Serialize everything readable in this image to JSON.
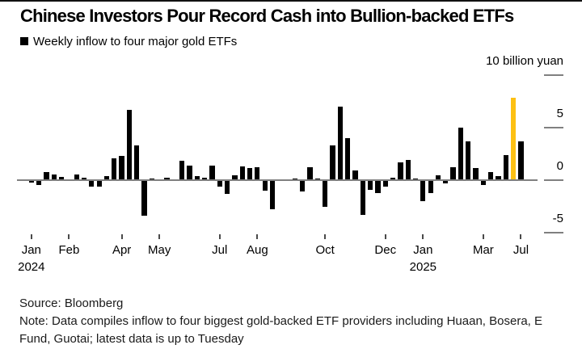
{
  "title": "Chinese Investors Pour Record Cash into Bullion-backed ETFs",
  "legend": {
    "label": "Weekly inflow to four major gold ETFs",
    "swatch_color": "#000000"
  },
  "footer": {
    "source": "Source: Bloomberg",
    "note": "Note: Data compiles inflow to four biggest gold-backed ETF providers including Huaan, Bosera, E Fund, Guotai; latest data is up to Tuesday"
  },
  "colors": {
    "bar": "#000000",
    "highlight": "#FDC013",
    "axis": "#808080",
    "tick": "#4a4a4a"
  },
  "chart_data": {
    "type": "bar",
    "title": "Chinese Investors Pour Record Cash into Bullion-backed ETFs",
    "subtitle": "Weekly inflow to four major gold ETFs",
    "unit": "10 billion yuan",
    "ylim": [
      -6.5,
      10
    ],
    "grid": false,
    "legend_position": "top-left",
    "values": [
      -0.25,
      -0.45,
      0.75,
      0.55,
      0.3,
      0.05,
      0.5,
      0.25,
      -0.6,
      -0.6,
      0.35,
      2.1,
      2.3,
      6.7,
      3.3,
      -3.4,
      0.15,
      0.1,
      0.2,
      0.08,
      1.85,
      1.35,
      0.35,
      0.2,
      1.4,
      -0.6,
      -1.3,
      0.45,
      1.3,
      1.15,
      1.2,
      -1.0,
      -2.75,
      0.05,
      0.05,
      0.15,
      -1.05,
      1.2,
      0.13,
      -2.5,
      3.3,
      7.0,
      4.0,
      0.9,
      -3.3,
      -0.9,
      -1.2,
      -0.6,
      0.2,
      1.7,
      1.9,
      0.18,
      -2.0,
      -1.2,
      0.45,
      -0.3,
      1.2,
      5.0,
      3.7,
      1.15,
      -0.45,
      0.75,
      0.35,
      2.4,
      7.8,
      3.7
    ],
    "highlight_index": 64,
    "x_ticks": [
      {
        "index": 0,
        "label": "Jan",
        "sublabel": "2024"
      },
      {
        "index": 5,
        "label": "Feb"
      },
      {
        "index": 12,
        "label": "Apr"
      },
      {
        "index": 17,
        "label": "May"
      },
      {
        "index": 25,
        "label": "Jul"
      },
      {
        "index": 30,
        "label": "Aug"
      },
      {
        "index": 39,
        "label": "Oct"
      },
      {
        "index": 47,
        "label": "Dec"
      },
      {
        "index": 52,
        "label": "Jan",
        "sublabel": "2025"
      },
      {
        "index": 60,
        "label": "Mar"
      },
      {
        "index": 65,
        "label": "Jul"
      }
    ],
    "y_ticks": [
      {
        "v": 10,
        "label": "10 billion yuan"
      },
      {
        "v": 5,
        "label": "5"
      },
      {
        "v": 0,
        "label": "0"
      },
      {
        "v": -5,
        "label": "-5"
      }
    ]
  }
}
